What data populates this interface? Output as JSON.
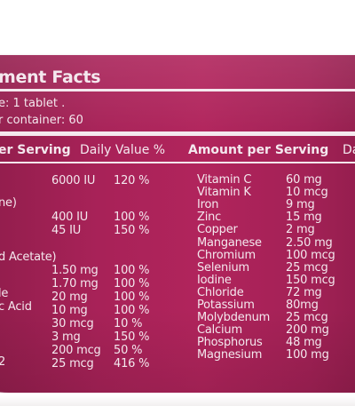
{
  "title": "ment Facts",
  "serving_size": "e: 1 tablet .",
  "servings_per_container": "r container: 60",
  "headers": {
    "per_serving": "er Serving",
    "daily_value": "Daily Value %",
    "amount_per_serving": "Amount per Serving",
    "cut_right": "Da"
  },
  "left_fragments": [
    "ne)",
    "d Acetate)",
    "le",
    "c Acid",
    "2"
  ],
  "left_rows": [
    {
      "amount": "6000 IU",
      "dv": "120 %"
    },
    {
      "amount": "400 IU",
      "dv": "100 %"
    },
    {
      "amount": "45 IU",
      "dv": "150 %"
    },
    {
      "amount": "1.50 mg",
      "dv": "100 %"
    },
    {
      "amount": "1.70 mg",
      "dv": "100 %"
    },
    {
      "amount": "20 mg",
      "dv": "100 %"
    },
    {
      "amount": "10 mg",
      "dv": "100 %"
    },
    {
      "amount": "30 mcg",
      "dv": "10 %"
    },
    {
      "amount": "3 mg",
      "dv": "150 %"
    },
    {
      "amount": "200 mcg",
      "dv": "50 %"
    },
    {
      "amount": "25 mcg",
      "dv": "416 %"
    }
  ],
  "right_rows": [
    {
      "name": "Vitamin C",
      "amount": "60 mg"
    },
    {
      "name": "Vitamin K",
      "amount": "10 mcg"
    },
    {
      "name": "Iron",
      "amount": "9 mg"
    },
    {
      "name": "Zinc",
      "amount": "15 mg"
    },
    {
      "name": "Copper",
      "amount": "2 mg"
    },
    {
      "name": "Manganese",
      "amount": "2.50 mg"
    },
    {
      "name": "Chromium",
      "amount": "100 mcg"
    },
    {
      "name": "Selenium",
      "amount": "25 mcg"
    },
    {
      "name": "Iodine",
      "amount": "150 mcg"
    },
    {
      "name": "Chloride",
      "amount": "72 mg"
    },
    {
      "name": "Potassium",
      "amount": "80mg"
    },
    {
      "name": "Molybdenum",
      "amount": "25 mcg"
    },
    {
      "name": "Calcium",
      "amount": "200 mg"
    },
    {
      "name": "Phosphorus",
      "amount": "48 mg"
    },
    {
      "name": "Magnesium",
      "amount": "100 mg"
    }
  ],
  "colors": {
    "label": "#a82258",
    "text": "#f4e8ee",
    "background": "#ffffff"
  }
}
